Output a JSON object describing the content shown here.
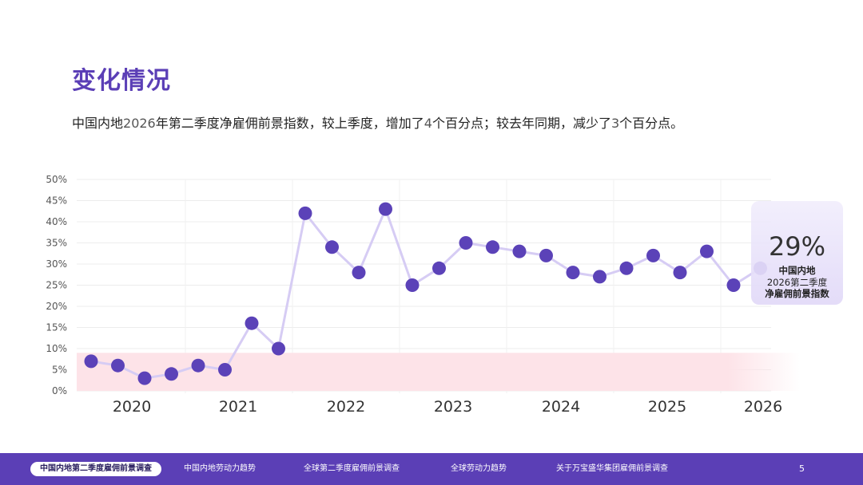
{
  "page": {
    "title": "变化情况",
    "summary": {
      "p1": "中国内地",
      "n1": "2026",
      "p2": "年第二季度净雇佣前景指数，较上季度，增加了",
      "n2": "4",
      "p3": "个百分点；较去年同期，减少了",
      "n3": "3",
      "p4": "个百分点。"
    }
  },
  "callout": {
    "value": "29%",
    "caption_line1": "中国内地",
    "caption_line2": "2026第二季度",
    "caption_line3": "净雇佣前景指数"
  },
  "chart_data": {
    "type": "line",
    "title": "",
    "xlabel": "",
    "ylabel": "",
    "ylim": [
      0,
      50
    ],
    "yticks": [
      "0%",
      "5%",
      "10%",
      "15%",
      "20%",
      "25%",
      "30%",
      "35%",
      "40%",
      "45%",
      "50%"
    ],
    "year_labels": [
      "2020",
      "2021",
      "2022",
      "2023",
      "2024",
      "2025",
      "2026"
    ],
    "series": [
      {
        "values": [
          7,
          6,
          3,
          4,
          6,
          5,
          16,
          10,
          42,
          34,
          28,
          43,
          25,
          29,
          35,
          34,
          33,
          32,
          28,
          27,
          29,
          32,
          28,
          33,
          25,
          29
        ]
      }
    ],
    "band": {
      "from": 0,
      "to": 9
    },
    "colors": {
      "line": "#d6ccf4",
      "marker": "#5b42b8",
      "band": "#fde3e8",
      "grid": "#ececec"
    }
  },
  "footer": {
    "nav": [
      "中国内地第二季度雇佣前景调查",
      "中国内地劳动力趋势",
      "全球第二季度雇佣前景调查",
      "全球劳动力趋势",
      "关于万宝盛华集团雇佣前景调查"
    ],
    "page_number": "5"
  }
}
